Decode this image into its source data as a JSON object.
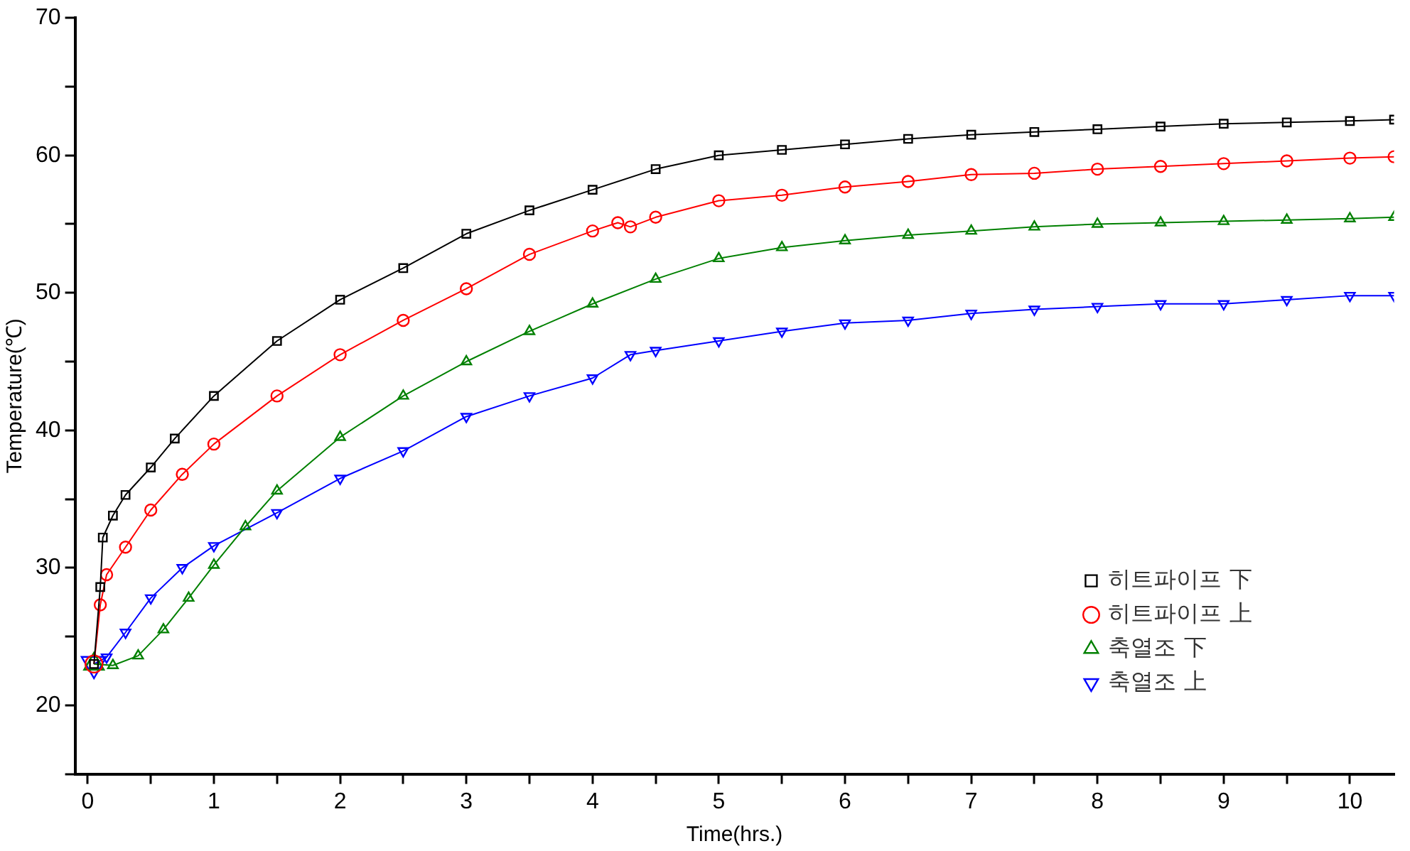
{
  "chart_data": {
    "type": "line",
    "xlabel": "Time(hrs.)",
    "ylabel": "Temperature(℃)",
    "xlim": [
      -0.1,
      10.35
    ],
    "ylim": [
      15,
      70
    ],
    "xticks": [
      0,
      {
        "value": 0.5,
        "label": null
      },
      1,
      {
        "value": 1.5,
        "label": null
      },
      2,
      {
        "value": 2.5,
        "label": null
      },
      3,
      {
        "value": 3.5,
        "label": null
      },
      4,
      {
        "value": 4.5,
        "label": null
      },
      5,
      {
        "value": 5.5,
        "label": null
      },
      6,
      {
        "value": 6.5,
        "label": null
      },
      7,
      {
        "value": 7.5,
        "label": null
      },
      8,
      {
        "value": 8.5,
        "label": null
      },
      9,
      {
        "value": 9.5,
        "label": null
      },
      10
    ],
    "yticks": [
      {
        "value": 15,
        "label": null
      },
      20,
      {
        "value": 25,
        "label": null
      },
      30,
      {
        "value": 35,
        "label": null
      },
      40,
      {
        "value": 45,
        "label": null
      },
      50,
      {
        "value": 55,
        "label": null
      },
      60,
      {
        "value": 65,
        "label": null
      },
      70
    ],
    "grid": false,
    "legend": "bottom right",
    "line_style": "solid",
    "series": [
      {
        "name": "히트파이프 下",
        "color": "#000000",
        "marker": "square",
        "x": [
          0.05,
          0.1,
          0.12,
          0.2,
          0.3,
          0.5,
          0.69,
          1,
          1.5,
          2,
          2.5,
          3,
          3.5,
          4,
          4.5,
          5,
          5.5,
          6,
          6.5,
          7,
          7.5,
          8,
          8.5,
          9,
          9.5,
          10,
          10.35
        ],
        "values": [
          23,
          28.6,
          32.2,
          33.8,
          35.3,
          37.3,
          39.4,
          42.5,
          46.5,
          49.5,
          51.8,
          54.3,
          56,
          57.5,
          59,
          60,
          60.4,
          60.8,
          61.2,
          61.5,
          61.7,
          61.9,
          62.1,
          62.3,
          62.4,
          62.5,
          62.6
        ]
      },
      {
        "name": "히트파이프 上",
        "color": "#ff0000",
        "marker": "circle",
        "x": [
          0.05,
          0.1,
          0.15,
          0.3,
          0.5,
          0.75,
          1,
          1.5,
          2,
          2.5,
          3,
          3.5,
          4,
          4.2,
          4.3,
          4.5,
          5,
          5.5,
          6,
          6.5,
          7,
          7.5,
          8,
          8.5,
          9,
          9.5,
          10,
          10.35
        ],
        "values": [
          23,
          27.3,
          29.5,
          31.5,
          34.2,
          36.8,
          39,
          42.5,
          45.5,
          48,
          50.3,
          52.8,
          54.5,
          55.1,
          54.8,
          55.5,
          56.7,
          57.1,
          57.7,
          58.1,
          58.6,
          58.7,
          59,
          59.2,
          59.4,
          59.6,
          59.8,
          59.9
        ]
      },
      {
        "name": "축열조 下",
        "color": "#008000",
        "marker": "triangle",
        "x": [
          0.05,
          0.2,
          0.4,
          0.6,
          0.8,
          1,
          1.25,
          1.5,
          2,
          2.5,
          3,
          3.5,
          4,
          4.5,
          5,
          5.5,
          6,
          6.5,
          7,
          7.5,
          8,
          8.5,
          9,
          9.5,
          10,
          10.35
        ],
        "values": [
          23,
          22.9,
          23.6,
          25.5,
          27.8,
          30.2,
          33,
          35.6,
          39.5,
          42.5,
          45,
          47.2,
          49.2,
          51,
          52.5,
          53.3,
          53.8,
          54.2,
          54.5,
          54.8,
          55,
          55.1,
          55.2,
          55.3,
          55.4,
          55.5
        ]
      },
      {
        "name": "축열조 上",
        "color": "#0000ff",
        "marker": "triangle-down",
        "x": [
          0.05,
          0.15,
          0.3,
          0.5,
          0.75,
          1,
          1.5,
          2,
          2.5,
          3,
          3.5,
          4,
          4.3,
          4.5,
          5,
          5.5,
          6,
          6.5,
          7,
          7.5,
          8,
          8.5,
          9,
          9.5,
          10,
          10.35
        ],
        "values": [
          23,
          23.5,
          25.3,
          27.8,
          30,
          31.6,
          34,
          36.5,
          38.5,
          41,
          42.5,
          43.8,
          45.5,
          45.8,
          46.5,
          47.2,
          47.8,
          48,
          48.5,
          48.8,
          49,
          49.2,
          49.2,
          49.5,
          49.8,
          49.8
        ]
      }
    ]
  }
}
